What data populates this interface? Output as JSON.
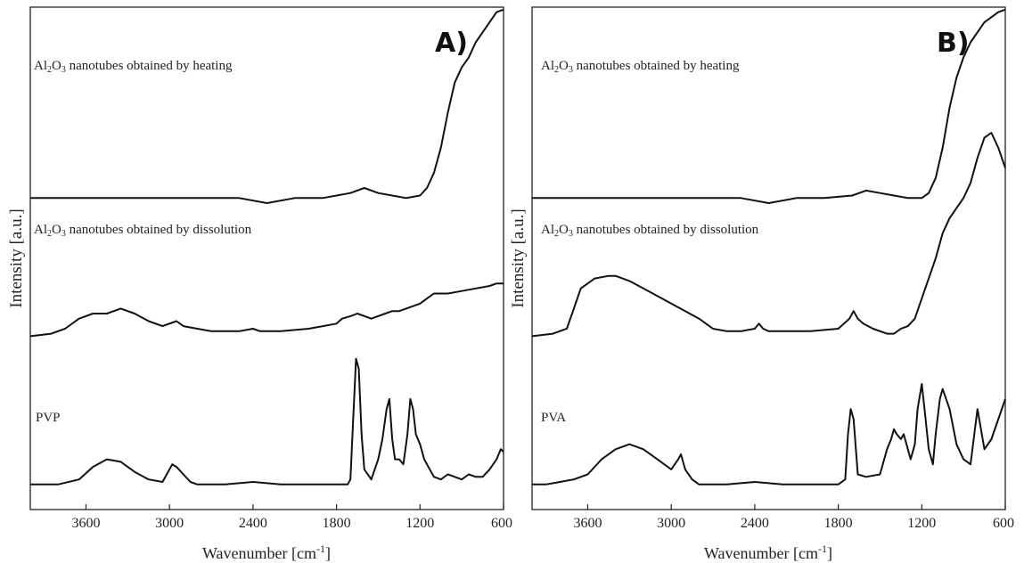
{
  "chart_data": [
    {
      "type": "line",
      "panel_label": "A)",
      "xlabel": "Wavenumber [cm",
      "xlabel_sup": "-1",
      "xlabel_end": "]",
      "ylabel": "Intensity [a.u.]",
      "xlim": [
        4000,
        600
      ],
      "xticks": [
        3600,
        3000,
        2400,
        1800,
        1200,
        600
      ],
      "xtick_labels": [
        "3600",
        "3000",
        "2400",
        "1800",
        "1200",
        "600"
      ],
      "y_units": "arbitrary, stacked offsets",
      "series": [
        {
          "label_pre": "Al",
          "label_sub1": "2",
          "label_mid": "O",
          "label_sub2": "3",
          "label_post": " nanotubes obtained by heating",
          "x": [
            4000,
            3700,
            3400,
            3100,
            2800,
            2500,
            2300,
            2100,
            1900,
            1700,
            1600,
            1500,
            1400,
            1300,
            1200,
            1150,
            1100,
            1050,
            1000,
            950,
            900,
            850,
            800,
            750,
            700,
            650,
            600
          ],
          "y": [
            0.62,
            0.62,
            0.62,
            0.62,
            0.62,
            0.62,
            0.61,
            0.62,
            0.62,
            0.63,
            0.64,
            0.63,
            0.625,
            0.62,
            0.625,
            0.64,
            0.67,
            0.72,
            0.79,
            0.85,
            0.88,
            0.9,
            0.93,
            0.95,
            0.97,
            0.99,
            0.995
          ]
        },
        {
          "label_pre": "Al",
          "label_sub1": "2",
          "label_mid": "O",
          "label_sub2": "3",
          "label_post": " nanotubes obtained by dissolution",
          "x": [
            4000,
            3850,
            3750,
            3650,
            3550,
            3450,
            3350,
            3250,
            3150,
            3050,
            2950,
            2900,
            2800,
            2700,
            2600,
            2500,
            2400,
            2350,
            2300,
            2200,
            2000,
            1800,
            1760,
            1700,
            1650,
            1550,
            1450,
            1400,
            1350,
            1300,
            1200,
            1150,
            1100,
            1050,
            1000,
            900,
            800,
            700,
            650,
            600
          ],
          "y": [
            0.345,
            0.35,
            0.36,
            0.38,
            0.39,
            0.39,
            0.4,
            0.39,
            0.375,
            0.365,
            0.375,
            0.365,
            0.36,
            0.355,
            0.355,
            0.355,
            0.36,
            0.355,
            0.355,
            0.355,
            0.36,
            0.37,
            0.38,
            0.385,
            0.39,
            0.38,
            0.39,
            0.395,
            0.395,
            0.4,
            0.41,
            0.42,
            0.43,
            0.43,
            0.43,
            0.435,
            0.44,
            0.445,
            0.45,
            0.45
          ]
        },
        {
          "label": "PVP",
          "x": [
            4000,
            3800,
            3650,
            3550,
            3450,
            3350,
            3250,
            3150,
            3050,
            2980,
            2950,
            2900,
            2850,
            2800,
            2600,
            2400,
            2200,
            2000,
            1800,
            1720,
            1700,
            1680,
            1660,
            1640,
            1620,
            1600,
            1550,
            1500,
            1470,
            1440,
            1420,
            1400,
            1380,
            1350,
            1320,
            1290,
            1270,
            1250,
            1230,
            1200,
            1170,
            1150,
            1100,
            1050,
            1000,
            950,
            900,
            850,
            800,
            750,
            700,
            650,
            620,
            600
          ],
          "y": [
            0.05,
            0.05,
            0.06,
            0.085,
            0.1,
            0.095,
            0.075,
            0.06,
            0.055,
            0.09,
            0.085,
            0.07,
            0.055,
            0.05,
            0.05,
            0.055,
            0.05,
            0.05,
            0.05,
            0.05,
            0.06,
            0.18,
            0.3,
            0.28,
            0.15,
            0.08,
            0.06,
            0.1,
            0.14,
            0.2,
            0.22,
            0.14,
            0.1,
            0.1,
            0.09,
            0.15,
            0.22,
            0.2,
            0.15,
            0.13,
            0.1,
            0.09,
            0.065,
            0.06,
            0.07,
            0.065,
            0.06,
            0.07,
            0.065,
            0.065,
            0.08,
            0.1,
            0.12,
            0.115
          ]
        }
      ]
    },
    {
      "type": "line",
      "panel_label": "B)",
      "xlabel": "Wavenumber [cm",
      "xlabel_sup": "-1",
      "xlabel_end": "]",
      "ylabel": "Intensity [a.u.]",
      "xlim": [
        4000,
        600
      ],
      "xticks": [
        3600,
        3000,
        2400,
        1800,
        1200,
        600
      ],
      "xtick_labels": [
        "3600",
        "3000",
        "2400",
        "1800",
        "1200",
        "600"
      ],
      "y_units": "arbitrary, stacked offsets",
      "series": [
        {
          "label_pre": "Al",
          "label_sub1": "2",
          "label_mid": "O",
          "label_sub2": "3",
          "label_post": " nanotubes obtained by heating",
          "x": [
            4000,
            3700,
            3400,
            3100,
            2800,
            2500,
            2300,
            2100,
            1900,
            1700,
            1600,
            1500,
            1400,
            1300,
            1200,
            1150,
            1100,
            1050,
            1000,
            950,
            900,
            850,
            800,
            750,
            700,
            650,
            600
          ],
          "y": [
            0.62,
            0.62,
            0.62,
            0.62,
            0.62,
            0.62,
            0.61,
            0.62,
            0.62,
            0.625,
            0.635,
            0.63,
            0.625,
            0.62,
            0.62,
            0.63,
            0.66,
            0.72,
            0.8,
            0.86,
            0.9,
            0.93,
            0.95,
            0.97,
            0.98,
            0.99,
            0.995
          ]
        },
        {
          "label_pre": "Al",
          "label_sub1": "2",
          "label_mid": "O",
          "label_sub2": "3",
          "label_post": " nanotubes obtained by dissolution",
          "x": [
            4000,
            3850,
            3750,
            3700,
            3650,
            3550,
            3450,
            3400,
            3300,
            3200,
            3100,
            3000,
            2900,
            2800,
            2700,
            2600,
            2500,
            2400,
            2370,
            2340,
            2300,
            2200,
            2000,
            1800,
            1720,
            1690,
            1660,
            1620,
            1550,
            1450,
            1400,
            1350,
            1300,
            1250,
            1200,
            1150,
            1100,
            1050,
            1000,
            950,
            900,
            850,
            800,
            750,
            700,
            650,
            600
          ],
          "y": [
            0.345,
            0.35,
            0.36,
            0.4,
            0.44,
            0.46,
            0.465,
            0.465,
            0.455,
            0.44,
            0.425,
            0.41,
            0.395,
            0.38,
            0.36,
            0.355,
            0.355,
            0.36,
            0.37,
            0.36,
            0.355,
            0.355,
            0.355,
            0.36,
            0.38,
            0.395,
            0.38,
            0.37,
            0.36,
            0.35,
            0.35,
            0.36,
            0.365,
            0.38,
            0.42,
            0.46,
            0.5,
            0.55,
            0.58,
            0.6,
            0.62,
            0.65,
            0.7,
            0.74,
            0.75,
            0.72,
            0.68
          ]
        },
        {
          "label": "PVA",
          "x": [
            4000,
            3900,
            3800,
            3700,
            3600,
            3500,
            3400,
            3300,
            3200,
            3100,
            3000,
            2950,
            2930,
            2900,
            2850,
            2800,
            2600,
            2400,
            2200,
            2000,
            1800,
            1750,
            1730,
            1710,
            1690,
            1660,
            1600,
            1500,
            1450,
            1420,
            1400,
            1380,
            1350,
            1330,
            1300,
            1280,
            1250,
            1230,
            1200,
            1180,
            1150,
            1120,
            1100,
            1070,
            1050,
            1000,
            950,
            900,
            850,
            800,
            750,
            700,
            650,
            600
          ],
          "y": [
            0.05,
            0.05,
            0.055,
            0.06,
            0.07,
            0.1,
            0.12,
            0.13,
            0.12,
            0.1,
            0.08,
            0.1,
            0.11,
            0.08,
            0.06,
            0.05,
            0.05,
            0.055,
            0.05,
            0.05,
            0.05,
            0.06,
            0.15,
            0.2,
            0.18,
            0.07,
            0.065,
            0.07,
            0.12,
            0.14,
            0.16,
            0.15,
            0.14,
            0.15,
            0.12,
            0.1,
            0.13,
            0.2,
            0.25,
            0.2,
            0.12,
            0.09,
            0.15,
            0.22,
            0.24,
            0.2,
            0.13,
            0.1,
            0.09,
            0.2,
            0.12,
            0.14,
            0.18,
            0.22
          ]
        }
      ]
    }
  ]
}
